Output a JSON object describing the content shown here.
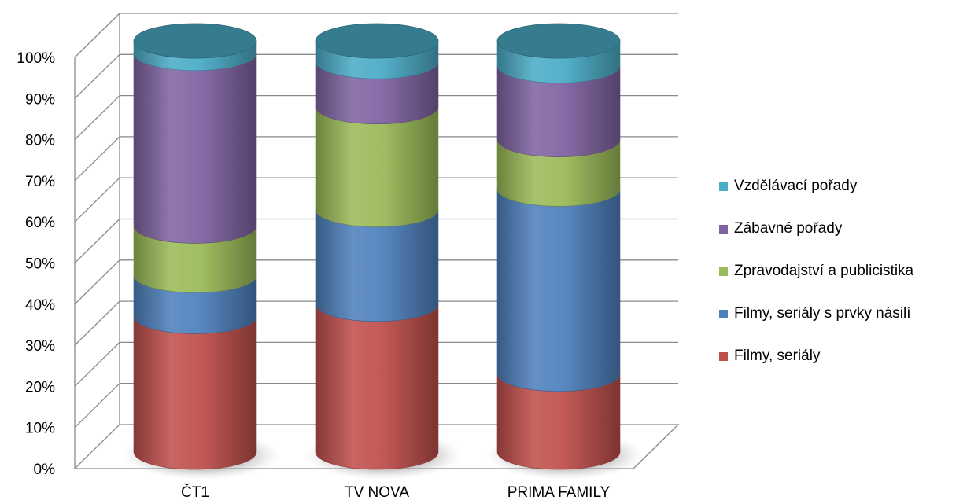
{
  "chart_data": {
    "type": "bar",
    "stacked": true,
    "percent_stacked": true,
    "style": "3d-cylinder",
    "categories": [
      "ČT1",
      "TV NOVA",
      "PRIMA FAMILY"
    ],
    "series": [
      {
        "name": "Filmy, seriály",
        "color": "#C0504D",
        "values": [
          33,
          36,
          19
        ]
      },
      {
        "name": "Filmy, seriály s prvky násilí",
        "color": "#4F81BD",
        "values": [
          10,
          23,
          45
        ]
      },
      {
        "name": "Zpravodajství a publicistika",
        "color": "#9BBB59",
        "values": [
          12,
          25,
          12
        ]
      },
      {
        "name": "Zábavné pořady",
        "color": "#8064A2",
        "values": [
          42,
          11,
          18
        ]
      },
      {
        "name": "Vzdělávací pořady",
        "color": "#4BACC6",
        "values": [
          3,
          5,
          6
        ]
      }
    ],
    "ylim": [
      0,
      100
    ],
    "yticks": [
      "0%",
      "10%",
      "20%",
      "30%",
      "40%",
      "50%",
      "60%",
      "70%",
      "80%",
      "90%",
      "100%"
    ],
    "grid": true,
    "legend_position": "right"
  }
}
